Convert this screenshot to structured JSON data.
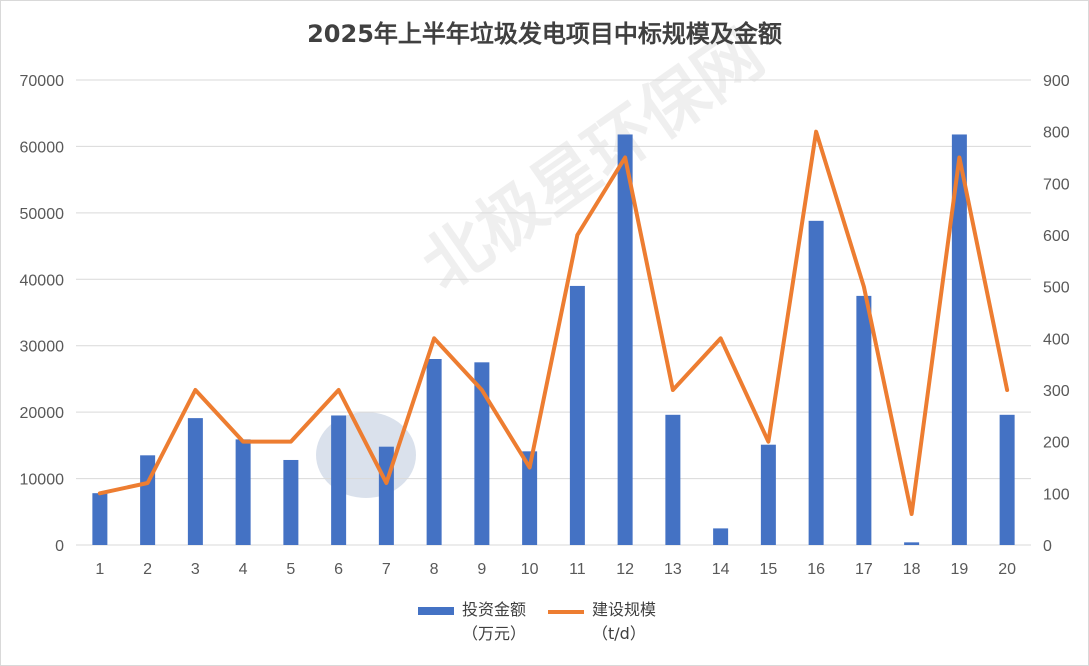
{
  "title": "2025年上半年垃圾发电项目中标规模及金额",
  "watermark": "北极星环保网",
  "colors": {
    "bar": "#4472c4",
    "line": "#ed7d31",
    "grid": "#d9d9d9",
    "text": "#595959"
  },
  "chart_data": {
    "type": "bar",
    "title": "2025年上半年垃圾发电项目中标规模及金额",
    "categories": [
      "1",
      "2",
      "3",
      "4",
      "5",
      "6",
      "7",
      "8",
      "9",
      "10",
      "11",
      "12",
      "13",
      "14",
      "15",
      "16",
      "17",
      "18",
      "19",
      "20"
    ],
    "series": [
      {
        "name": "投资金额（万元）",
        "type": "bar",
        "axis": "left",
        "values": [
          7800,
          13500,
          19100,
          15900,
          12800,
          19500,
          14800,
          28000,
          27500,
          14100,
          39000,
          61800,
          19600,
          2500,
          15100,
          48800,
          37500,
          400,
          61800,
          19600
        ]
      },
      {
        "name": "建设规模（t/d）",
        "type": "line",
        "axis": "right",
        "values": [
          100,
          120,
          300,
          200,
          200,
          300,
          120,
          400,
          300,
          150,
          600,
          750,
          300,
          400,
          200,
          800,
          500,
          60,
          750,
          300
        ]
      }
    ],
    "y_left": {
      "min": 0,
      "max": 70000,
      "ticks": [
        "0",
        "10000",
        "20000",
        "30000",
        "40000",
        "50000",
        "60000",
        "70000"
      ]
    },
    "y_right": {
      "min": 0,
      "max": 900,
      "ticks": [
        "0",
        "100",
        "200",
        "300",
        "400",
        "500",
        "600",
        "700",
        "800",
        "900"
      ]
    },
    "grid": true,
    "legend_position": "bottom",
    "legend": [
      {
        "label": "投资金额\n（万元）",
        "kind": "bar"
      },
      {
        "label": "建设规模\n（t/d）",
        "kind": "line"
      }
    ]
  }
}
